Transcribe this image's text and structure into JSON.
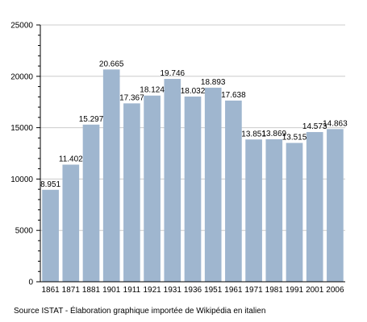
{
  "chart_data": {
    "type": "bar",
    "title": "",
    "xlabel": "",
    "ylabel": "",
    "categories": [
      "1861",
      "1871",
      "1881",
      "1901",
      "1911",
      "1921",
      "1931",
      "1936",
      "1951",
      "1961",
      "1971",
      "1981",
      "1991",
      "2001",
      "2006"
    ],
    "values": [
      8951,
      11402,
      15297,
      20665,
      17367,
      18124,
      19746,
      18032,
      18893,
      17638,
      13851,
      13869,
      13515,
      14573,
      14863
    ],
    "value_labels": [
      "8.951",
      "11.402",
      "15.297",
      "20.665",
      "17.367",
      "18.124",
      "19.746",
      "18.032",
      "18.893",
      "17.638",
      "13.851",
      "13.869",
      "13.515",
      "14.573",
      "14.863"
    ],
    "ylim": [
      0,
      25000
    ],
    "yticks": [
      0,
      5000,
      10000,
      15000,
      20000,
      25000
    ],
    "ytick_labels": [
      "0",
      "5000",
      "10000",
      "15000",
      "20000",
      "25000"
    ],
    "grid": true,
    "legend": "none",
    "bar_color": "#9fb6cf",
    "grid_color": "#cccccc"
  },
  "source_text": "Source ISTAT - Élaboration graphique importée de Wikipédia en italien"
}
